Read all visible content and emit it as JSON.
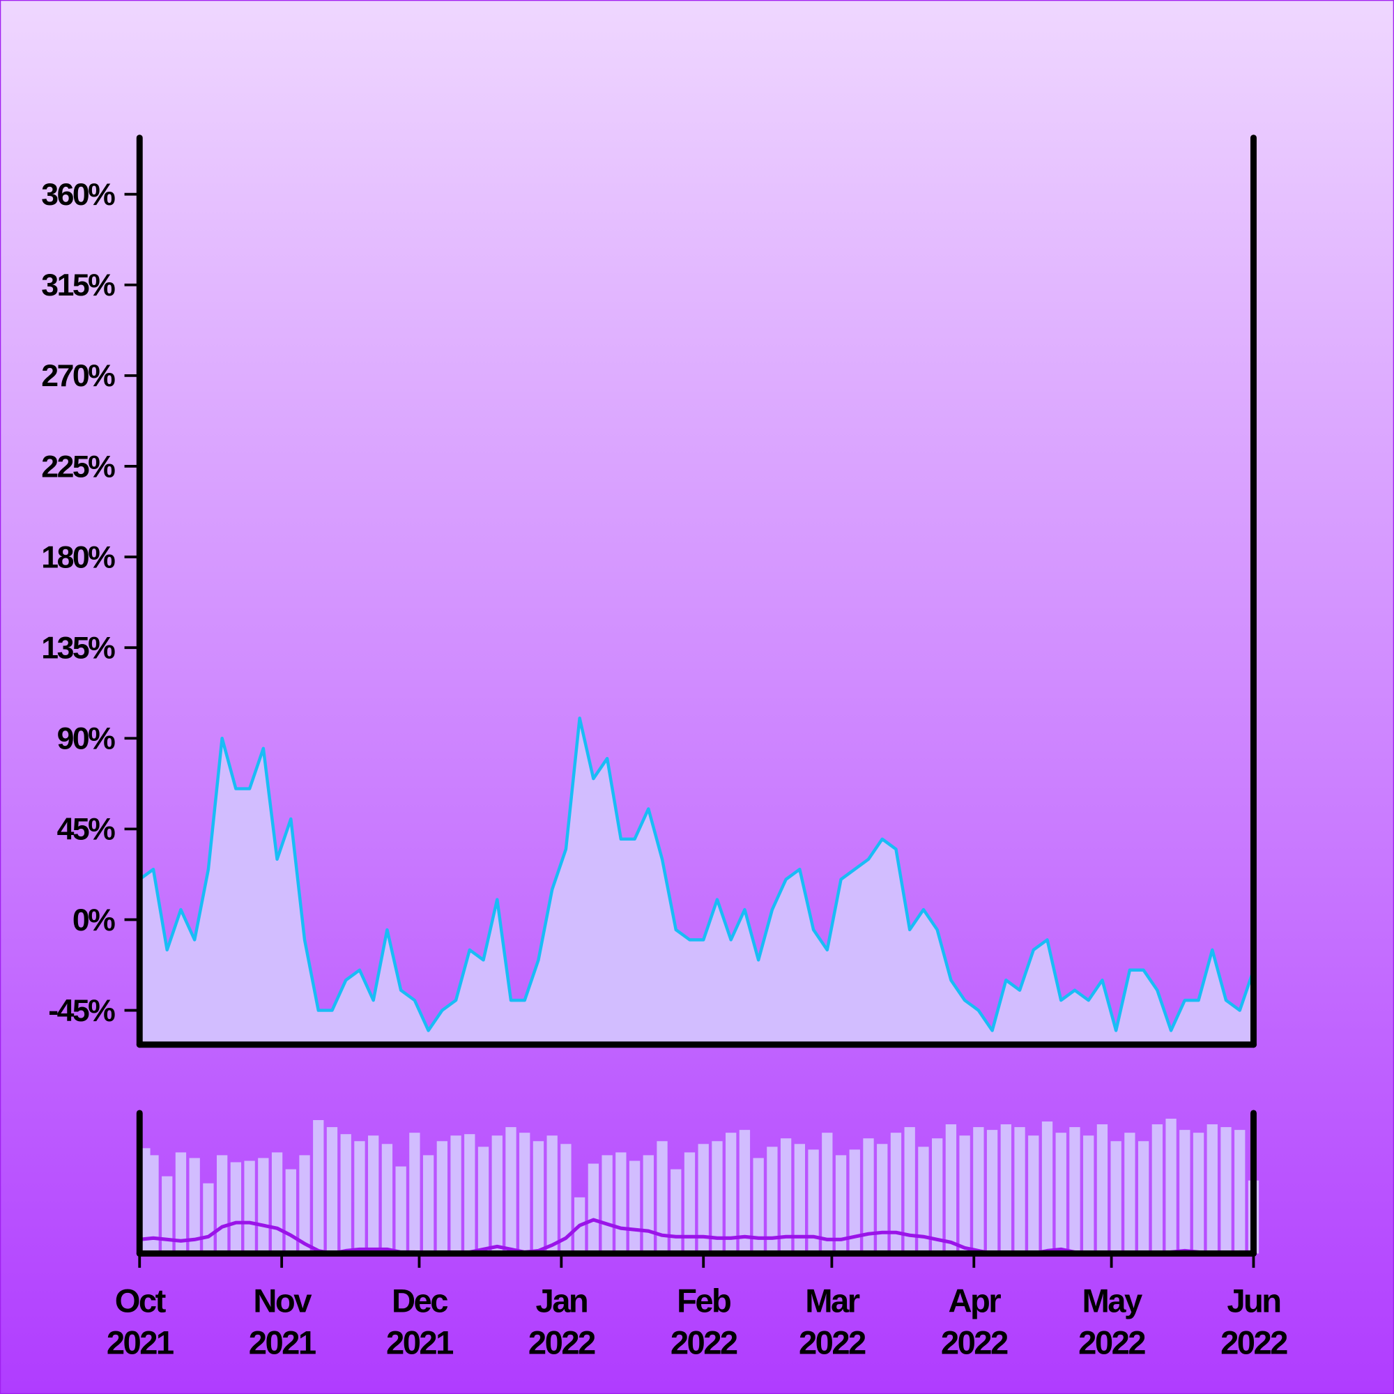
{
  "chart_data": [
    {
      "type": "area",
      "x": [
        0,
        3,
        6,
        9,
        12,
        15,
        18,
        21,
        24,
        27,
        30,
        33,
        36,
        39,
        42,
        45,
        48,
        51,
        54,
        57,
        60,
        63,
        66,
        69,
        72,
        75,
        78,
        81,
        84,
        87,
        90,
        93,
        96,
        99,
        102,
        105,
        108,
        111,
        114,
        117,
        120,
        123,
        126,
        129,
        132,
        135,
        138,
        141,
        144,
        147,
        150,
        153,
        156,
        159,
        162,
        165,
        168,
        171,
        174,
        177,
        180,
        183,
        186,
        189,
        192,
        195,
        198,
        201,
        204,
        207,
        210,
        213,
        216,
        219,
        222,
        225,
        228,
        231,
        234,
        237,
        240,
        243
      ],
      "values": [
        20,
        25,
        -15,
        5,
        -10,
        25,
        90,
        65,
        65,
        85,
        30,
        50,
        -10,
        -45,
        -45,
        -30,
        -25,
        -40,
        -5,
        -35,
        -40,
        -55,
        -45,
        -40,
        -15,
        -20,
        10,
        -40,
        -40,
        -20,
        15,
        35,
        100,
        70,
        80,
        40,
        40,
        55,
        30,
        -5,
        -10,
        -10,
        10,
        -10,
        5,
        -20,
        5,
        20,
        25,
        -5,
        -15,
        20,
        25,
        30,
        40,
        35,
        -5,
        5,
        -5,
        -30,
        -40,
        -45,
        -55,
        -30,
        -35,
        -15,
        -10,
        -40,
        -35,
        -40,
        -30,
        -55,
        -25,
        -25,
        -35,
        -55,
        -40,
        -40,
        -15,
        -40,
        -45,
        -25
      ],
      "color": "#19bdf5",
      "fill": "#d2bdff",
      "xlim": [
        0,
        243
      ],
      "xticks": [
        {
          "value": 0,
          "label": "Oct 2021"
        },
        {
          "value": 31,
          "label": "Nov 2021"
        },
        {
          "value": 61,
          "label": "Dec 2021"
        },
        {
          "value": 92,
          "label": "Jan 2022"
        },
        {
          "value": 123,
          "label": "Feb 2022"
        },
        {
          "value": 151,
          "label": "Mar 2022"
        },
        {
          "value": 182,
          "label": "Apr 2022"
        },
        {
          "value": 212,
          "label": "May 2022"
        },
        {
          "value": 243,
          "label": "Jun 2022"
        }
      ],
      "ylim": [
        -62,
        388
      ],
      "yticks": [
        {
          "value": -45,
          "label": "-45%"
        },
        {
          "value": 0,
          "label": "0%"
        },
        {
          "value": 45,
          "label": "45%"
        },
        {
          "value": 90,
          "label": "90%"
        },
        {
          "value": 135,
          "label": "135%"
        },
        {
          "value": 180,
          "label": "180%"
        },
        {
          "value": 225,
          "label": "225%"
        },
        {
          "value": 270,
          "label": "270%"
        },
        {
          "value": 315,
          "label": "315%"
        },
        {
          "value": 360,
          "label": "360%"
        }
      ]
    },
    {
      "type": "navigator",
      "x": [
        0,
        3,
        6,
        9,
        12,
        15,
        18,
        21,
        24,
        27,
        30,
        33,
        36,
        39,
        42,
        45,
        48,
        51,
        54,
        57,
        60,
        63,
        66,
        69,
        72,
        75,
        78,
        81,
        84,
        87,
        90,
        93,
        96,
        99,
        102,
        105,
        108,
        111,
        114,
        117,
        120,
        123,
        126,
        129,
        132,
        135,
        138,
        141,
        144,
        147,
        150,
        153,
        156,
        159,
        162,
        165,
        168,
        171,
        174,
        177,
        180,
        183,
        186,
        189,
        192,
        195,
        198,
        201,
        204,
        207,
        210,
        213,
        216,
        219,
        222,
        225,
        228,
        231,
        234,
        237,
        240,
        243
      ],
      "xlim": [
        0,
        243
      ],
      "ylim": [
        0,
        100
      ],
      "series": [
        {
          "type": "bar",
          "color": "#d2bdff",
          "values": [
            75,
            70,
            55,
            72,
            68,
            50,
            70,
            65,
            66,
            68,
            72,
            60,
            70,
            95,
            90,
            85,
            80,
            84,
            78,
            62,
            86,
            70,
            80,
            84,
            85,
            76,
            84,
            90,
            86,
            80,
            84,
            78,
            40,
            64,
            70,
            72,
            66,
            70,
            80,
            60,
            72,
            78,
            80,
            86,
            88,
            68,
            76,
            82,
            78,
            74,
            86,
            70,
            74,
            82,
            78,
            86,
            90,
            76,
            82,
            92,
            84,
            90,
            88,
            92,
            90,
            84,
            94,
            86,
            90,
            84,
            92,
            80,
            86,
            80,
            92,
            96,
            88,
            86,
            92,
            90,
            88,
            52
          ],
          "data_name": "volume"
        },
        {
          "type": "line",
          "color": "#9a14e8",
          "values": [
            10,
            11,
            10,
            9,
            10,
            12,
            19,
            22,
            22,
            20,
            18,
            13,
            7,
            2,
            0,
            2,
            3,
            3,
            3,
            1,
            1,
            0,
            0,
            0,
            1,
            3,
            5,
            3,
            1,
            2,
            6,
            11,
            20,
            24,
            21,
            18,
            17,
            16,
            13,
            12,
            12,
            12,
            11,
            11,
            12,
            11,
            11,
            12,
            12,
            12,
            10,
            10,
            12,
            14,
            15,
            15,
            13,
            12,
            10,
            8,
            4,
            2,
            0,
            0,
            0,
            0,
            2,
            3,
            1,
            0,
            0,
            0,
            0,
            0,
            0,
            1,
            2,
            1,
            0,
            0,
            1,
            1
          ],
          "data_name": "trend"
        }
      ]
    }
  ]
}
